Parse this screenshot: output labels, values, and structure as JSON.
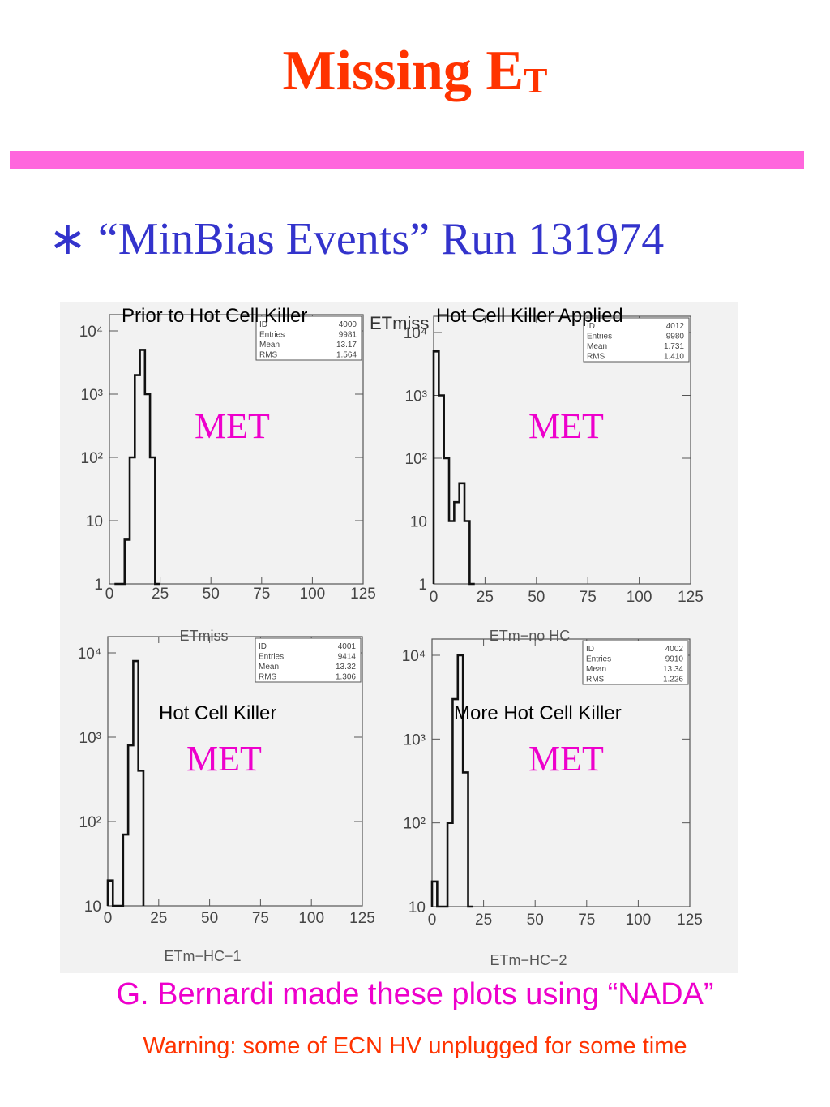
{
  "title": {
    "main": "Missing E",
    "sub": "T"
  },
  "colors": {
    "title": "#ff3300",
    "rule": "#ff66dd",
    "bullet": "#3333cc",
    "met": "#ee00cc",
    "footer1": "#ee00cc",
    "footer2": "#ff3300"
  },
  "bullet": {
    "symbol": "∗",
    "text": "“MinBias Events”  Run 131974"
  },
  "captions": {
    "top_left": "Prior to Hot Cell Killer",
    "top_center": "ETmiss",
    "top_right": "Hot Cell Killer Applied",
    "bottom_left": "Hot Cell Killer",
    "bottom_right": "More Hot Cell Killer"
  },
  "met_label": "MET",
  "footer": {
    "line1": "G. Bernardi made these plots using “NADA”",
    "line2": "Warning: some of ECN HV unplugged for some time"
  },
  "chart_data": [
    {
      "type": "histogram",
      "xlabel": "ETmiss",
      "xticks": [
        "0",
        "25",
        "50",
        "75",
        "100",
        "125"
      ],
      "xlim": [
        0,
        125
      ],
      "ylog": true,
      "yticks": [
        "1",
        "10",
        "10²",
        "10³",
        "10⁴"
      ],
      "stats": {
        "ID": "4000",
        "Entries": "9981",
        "Mean": "13.17",
        "RMS": "1.564"
      },
      "bins": [
        [
          2.5,
          1
        ],
        [
          5,
          1
        ],
        [
          7.5,
          5
        ],
        [
          10,
          100
        ],
        [
          12.5,
          2000
        ],
        [
          15,
          5000
        ],
        [
          17.5,
          1000
        ],
        [
          20,
          100
        ],
        [
          22.5,
          1
        ]
      ]
    },
    {
      "type": "histogram",
      "xlabel": "ETm−no HC",
      "xticks": [
        "0",
        "25",
        "50",
        "75",
        "100",
        "125"
      ],
      "xlim": [
        0,
        125
      ],
      "ylog": true,
      "yticks": [
        "1",
        "10",
        "10²",
        "10³",
        "10⁴"
      ],
      "stats": {
        "ID": "4012",
        "Entries": "9980",
        "Mean": "1.731",
        "RMS": "1.410"
      },
      "bins": [
        [
          0,
          5000
        ],
        [
          2.5,
          1000
        ],
        [
          5,
          100
        ],
        [
          7.5,
          10
        ],
        [
          10,
          20
        ],
        [
          12.5,
          40
        ],
        [
          15,
          10
        ],
        [
          17.5,
          1
        ]
      ]
    },
    {
      "type": "histogram",
      "xlabel": "ETm−HC−1",
      "xticks": [
        "0",
        "25",
        "50",
        "75",
        "100",
        "125"
      ],
      "xlim": [
        0,
        125
      ],
      "ylog": true,
      "yticks": [
        "10",
        "10²",
        "10³",
        "10⁴"
      ],
      "stats": {
        "ID": "4001",
        "Entries": "9414",
        "Mean": "13.32",
        "RMS": "1.306"
      },
      "bins": [
        [
          0,
          20
        ],
        [
          2.5,
          10
        ],
        [
          5,
          10
        ],
        [
          7.5,
          70
        ],
        [
          10,
          800
        ],
        [
          12.5,
          8000
        ],
        [
          15,
          400
        ]
      ]
    },
    {
      "type": "histogram",
      "xlabel": "ETm−HC−2",
      "xticks": [
        "0",
        "25",
        "50",
        "75",
        "100",
        "125"
      ],
      "xlim": [
        0,
        125
      ],
      "ylog": true,
      "yticks": [
        "10",
        "10²",
        "10³",
        "10⁴"
      ],
      "stats": {
        "ID": "4002",
        "Entries": "9910",
        "Mean": "13.34",
        "RMS": "1.226"
      },
      "bins": [
        [
          0,
          20
        ],
        [
          2.5,
          10
        ],
        [
          5,
          10
        ],
        [
          7.5,
          100
        ],
        [
          10,
          3000
        ],
        [
          12.5,
          10000
        ],
        [
          15,
          400
        ],
        [
          17.5,
          10
        ]
      ]
    }
  ]
}
